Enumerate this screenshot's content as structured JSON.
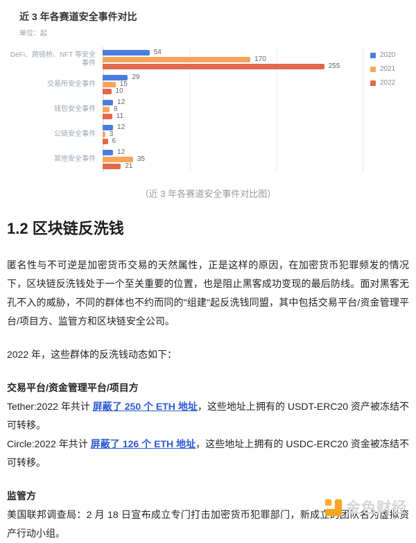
{
  "chart": {
    "title": "近 3 年各赛道安全事件对比",
    "unit": "单位：起",
    "caption": "（近 3 年各赛道安全事件对比图）"
  },
  "chart_data": {
    "type": "bar",
    "orientation": "horizontal",
    "title": "近 3 年各赛道安全事件对比",
    "unit_label": "单位：起",
    "caption": "（近 3 年各赛道安全事件对比图）",
    "categories": [
      "DeFi、跨链桥、NFT 等安全事件",
      "交易所安全事件",
      "钱包安全事件",
      "公链安全事件",
      "其他安全事件"
    ],
    "series": [
      {
        "name": "2020",
        "color": "#4C7CE0",
        "values": [
          54,
          29,
          12,
          12,
          12
        ]
      },
      {
        "name": "2021",
        "color": "#F9A45B",
        "values": [
          170,
          15,
          8,
          3,
          35
        ]
      },
      {
        "name": "2022",
        "color": "#E0694D",
        "values": [
          255,
          10,
          11,
          6,
          21
        ]
      }
    ],
    "xlim": [
      0,
      300
    ],
    "gridlines": [
      0,
      100,
      200,
      300
    ],
    "grid": true,
    "value_labels": true,
    "legend_position": "top-right"
  },
  "article": {
    "heading": "1.2 区块链反洗钱",
    "paragraphs": [
      {
        "runs": [
          {
            "text": "匿名性与不可逆是加密货币交易的天然属性，正是这样的原因，在加密货币犯罪频发的情况下，区块链反洗钱处于一个至关重要的位置，也是阻止黑客成功变现的最后防线。面对黑客无孔不入的威胁，不同的群体也不约而同的\"组建\"起反洗钱同盟，其中包括交易平台/资金管理平台/项目方、监管方和区块链安全公司。"
          }
        ]
      },
      {
        "runs": [
          {
            "text": "2022 年，这些群体的反洗钱动态如下："
          }
        ]
      },
      {
        "runs": [
          {
            "text": "交易平台/资金管理平台/项目方",
            "style": "bold"
          }
        ]
      },
      {
        "runs": [
          {
            "text": "Tether:2022 年共计 "
          },
          {
            "text": "屏蔽了 250 个 ETH 地址",
            "style": "link"
          },
          {
            "text": "，这些地址上拥有的 USDT-ERC20 资产被冻结不可转移。"
          }
        ]
      },
      {
        "runs": [
          {
            "text": "Circle:2022 年共计 "
          },
          {
            "text": "屏蔽了 126 个 ETH 地址",
            "style": "link"
          },
          {
            "text": "，这些地址上拥有的 USDC-ERC20 资金被冻结不可转移。"
          }
        ]
      },
      {
        "runs": [
          {
            "text": "监管方",
            "style": "bold"
          }
        ]
      },
      {
        "runs": [
          {
            "text": "美国联邦调查局：2 月 18 日宣布成立专门打击加密货币犯罪部门，新成立的团队名为虚拟资产行动小组。"
          }
        ]
      }
    ]
  },
  "watermark": {
    "text": "金色财经",
    "icon": "jinse-logo",
    "icon_color": "#F5A623"
  },
  "colors": {
    "link": "#2B58D8",
    "grid": "#ECECEC",
    "body_text": "#222222",
    "muted": "#999999",
    "value_label": "#666666",
    "category_label": "#9BA3AF"
  }
}
